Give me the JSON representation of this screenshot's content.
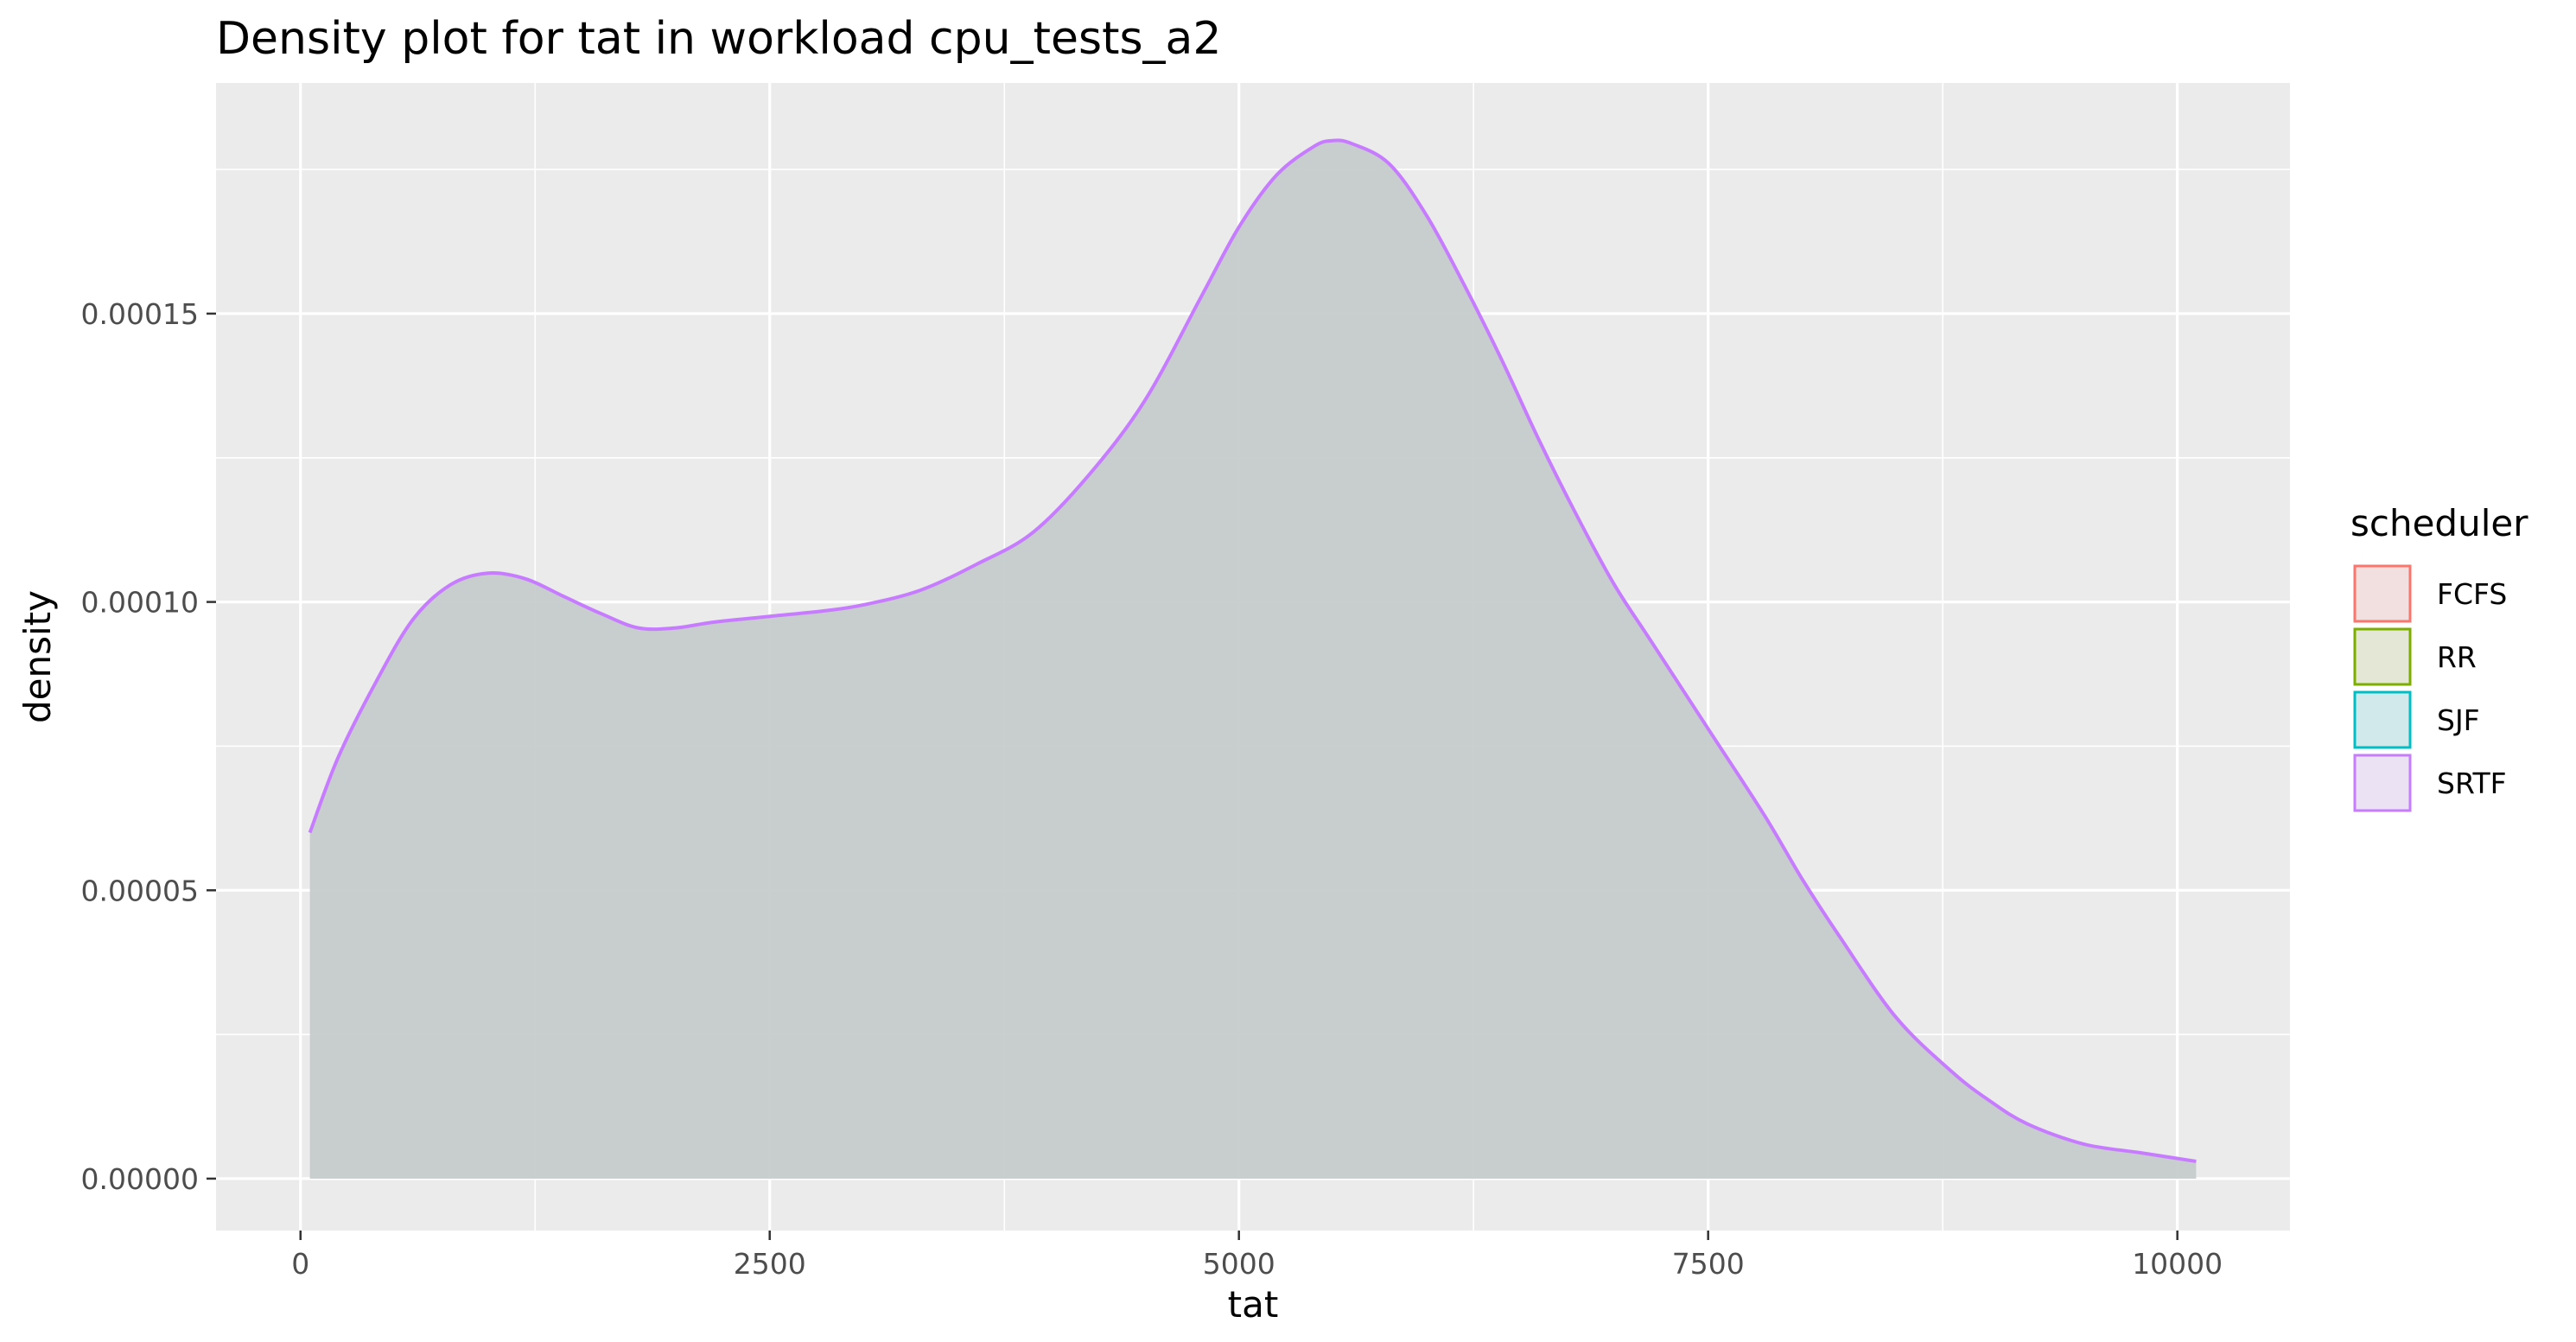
{
  "chart_data": {
    "type": "area",
    "title": "Density plot for tat in workload cpu_tests_a2",
    "xlabel": "tat",
    "ylabel": "density",
    "xlim": [
      -450,
      10600
    ],
    "ylim": [
      -9e-06,
      0.00019
    ],
    "x_ticks": [
      0,
      2500,
      5000,
      7500,
      10000
    ],
    "x_tick_labels": [
      "0",
      "2500",
      "5000",
      "7500",
      "10000"
    ],
    "y_ticks": [
      0,
      5e-05,
      0.0001,
      0.00015
    ],
    "y_tick_labels": [
      "0.00000",
      "0.00005",
      "0.00010",
      "0.00015"
    ],
    "x_minor": [
      1250,
      3750,
      6250,
      8750
    ],
    "y_minor": [
      2.5e-05,
      7.5e-05,
      0.000125,
      0.000175
    ],
    "grid": true,
    "panel_background": "#ebebeb",
    "fill_color": "#c6cbcc",
    "legend": {
      "title": "scheduler",
      "position": "right",
      "entries": [
        {
          "name": "FCFS",
          "color": "#f8766d",
          "fill": "#f1e0df"
        },
        {
          "name": "RR",
          "color": "#7cae00",
          "fill": "#e4e7d5"
        },
        {
          "name": "SJF",
          "color": "#00bfc4",
          "fill": "#d2e9ec"
        },
        {
          "name": "SRTF",
          "color": "#c77cff",
          "fill": "#ebe2f4"
        }
      ]
    },
    "series": [
      {
        "name": "SRTF",
        "color": "#c77cff",
        "x": [
          50,
          200,
          400,
          600,
          800,
          1000,
          1200,
          1400,
          1600,
          1800,
          2000,
          2200,
          2500,
          2800,
          3000,
          3300,
          3600,
          3900,
          4200,
          4500,
          4800,
          5000,
          5200,
          5400,
          5500,
          5600,
          5800,
          6000,
          6200,
          6400,
          6600,
          6800,
          7000,
          7200,
          7500,
          7800,
          8000,
          8200,
          8500,
          8800,
          9000,
          9200,
          9500,
          9800,
          10100
        ],
        "y": [
          6e-05,
          7.3e-05,
          8.6e-05,
          9.7e-05,
          0.000103,
          0.000105,
          0.000104,
          0.000101,
          9.8e-05,
          9.55e-05,
          9.55e-05,
          9.65e-05,
          9.75e-05,
          9.85e-05,
          9.95e-05,
          0.000102,
          0.0001065,
          0.000112,
          0.000122,
          0.000135,
          0.000153,
          0.000165,
          0.000174,
          0.000179,
          0.00018,
          0.0001795,
          0.000176,
          0.000167,
          0.000155,
          0.000142,
          0.000128,
          0.000115,
          0.000103,
          9.3e-05,
          7.8e-05,
          6.3e-05,
          5.2e-05,
          4.2e-05,
          2.8e-05,
          1.85e-05,
          1.35e-05,
          9.5e-06,
          6e-06,
          4.5e-06,
          3e-06
        ]
      }
    ]
  }
}
